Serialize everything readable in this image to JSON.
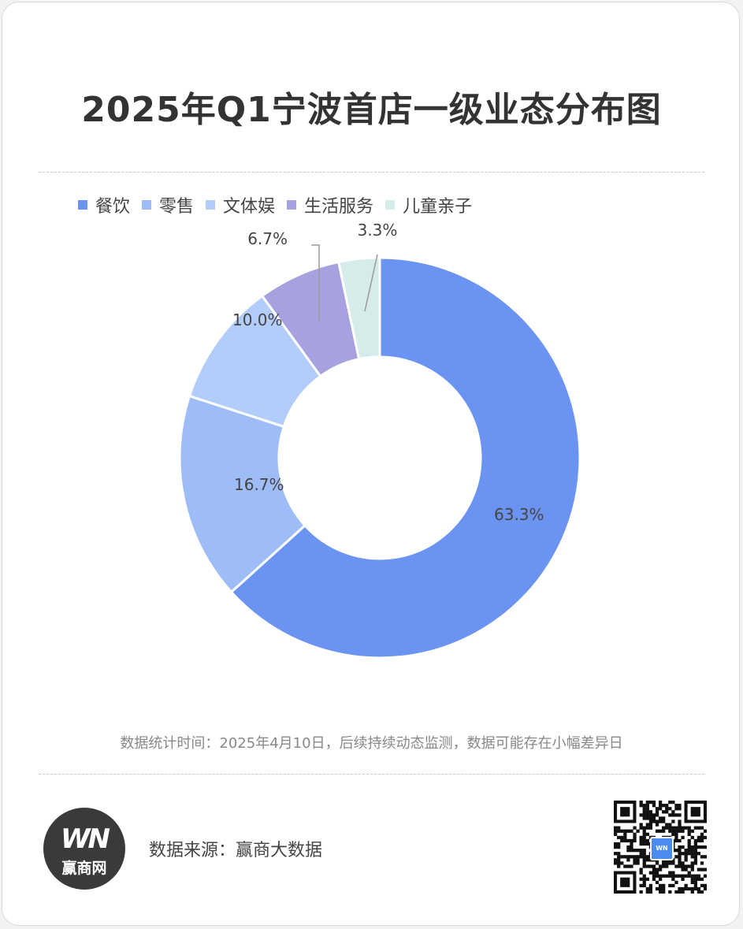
{
  "title": "2025年Q1宁波首店一级业态分布图",
  "legend": [
    {
      "label": "餐饮",
      "color": "#6b94f2"
    },
    {
      "label": "零售",
      "color": "#9ebcf5"
    },
    {
      "label": "文体娱",
      "color": "#b3cdfa"
    },
    {
      "label": "生活服务",
      "color": "#a6a2e0"
    },
    {
      "label": "儿童亲子",
      "color": "#d6ecea"
    }
  ],
  "chart_data": {
    "type": "pie",
    "variant": "donut",
    "categories": [
      "餐饮",
      "零售",
      "文体娱",
      "生活服务",
      "儿童亲子"
    ],
    "values": [
      63.3,
      16.7,
      10.0,
      6.7,
      3.3
    ],
    "value_labels": [
      "63.3%",
      "16.7%",
      "10.0%",
      "6.7%",
      "3.3%"
    ],
    "colors": [
      "#6b94f2",
      "#9ebcf5",
      "#b3cdfa",
      "#a6a2e0",
      "#d6ecea"
    ],
    "legend_position": "top-left"
  },
  "note": "数据统计时间：2025年4月10日，后续持续动态监测，数据可能存在小幅差异日",
  "source": "数据来源：赢商大数据",
  "logo": {
    "mark": "WN",
    "text": "赢商网"
  },
  "qr_badge": "WN"
}
